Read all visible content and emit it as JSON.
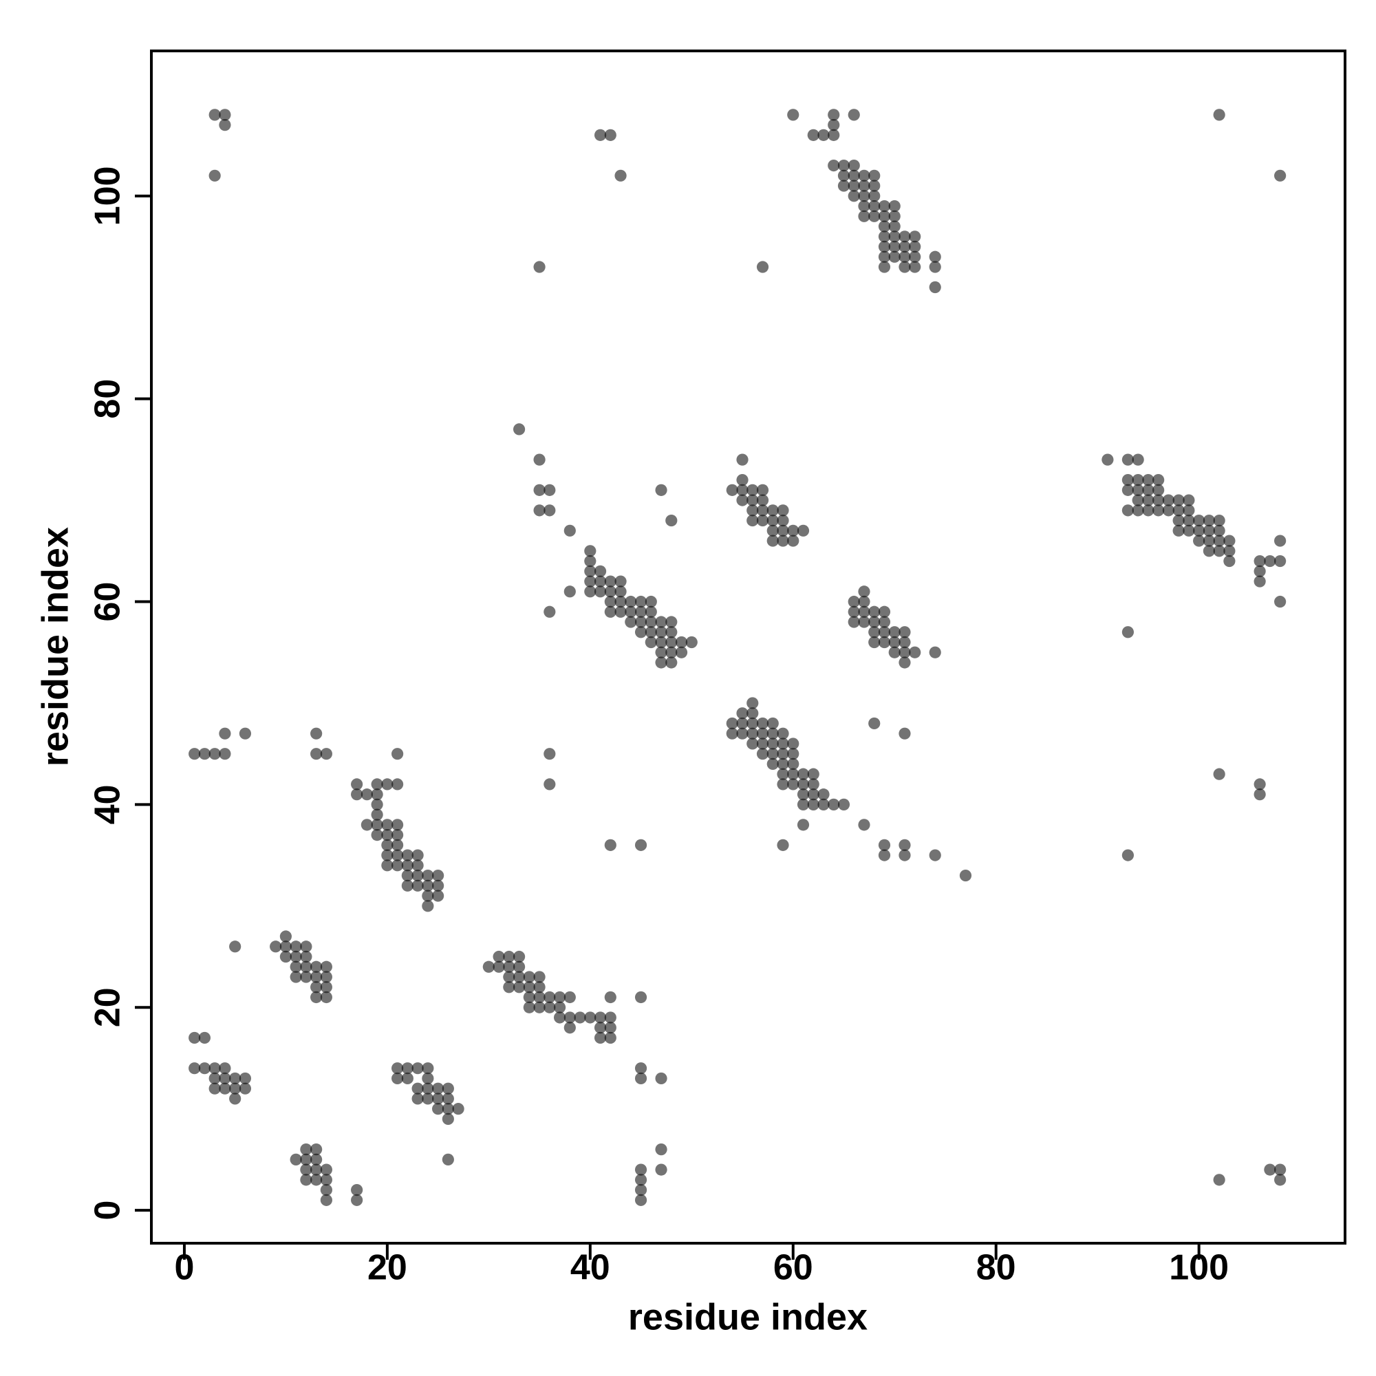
{
  "chart_data": {
    "type": "scatter",
    "xlabel": "residue index",
    "ylabel": "residue index",
    "xlim": [
      -3.25,
      114.4
    ],
    "ylim": [
      -3.25,
      114.3
    ],
    "xticks": [
      0,
      20,
      40,
      60,
      80,
      100
    ],
    "yticks": [
      0,
      20,
      40,
      60,
      80,
      100
    ],
    "color": "#000000",
    "alpha": 0.55,
    "series": [
      {
        "x": [
          3,
          4,
          4,
          3,
          41,
          42,
          43,
          35,
          57,
          60,
          64,
          66,
          62,
          63,
          64,
          64,
          102,
          108
        ],
        "y": [
          108,
          108,
          107,
          102,
          106,
          106,
          102,
          93,
          93,
          108,
          108,
          108,
          106,
          106,
          106,
          107,
          108,
          102
        ]
      },
      {
        "x": [
          64,
          65,
          65,
          65,
          66,
          66,
          66,
          66,
          67,
          67,
          67,
          67,
          67,
          68,
          68,
          68,
          68,
          68,
          69,
          69,
          69,
          69,
          69,
          69,
          69,
          70,
          70,
          70,
          70,
          70,
          70,
          71,
          71,
          71,
          71,
          72,
          72,
          72,
          72,
          74,
          74,
          74
        ],
        "y": [
          103,
          103,
          102,
          101,
          103,
          102,
          101,
          100,
          102,
          101,
          100,
          99,
          98,
          102,
          101,
          100,
          99,
          98,
          99,
          98,
          97,
          96,
          95,
          94,
          93,
          99,
          98,
          97,
          96,
          95,
          94,
          96,
          95,
          94,
          93,
          96,
          95,
          94,
          93,
          94,
          93,
          91
        ]
      },
      {
        "x": [
          33,
          35,
          35,
          36,
          35,
          36,
          38,
          38,
          36,
          47,
          48
        ],
        "y": [
          77,
          74,
          71,
          71,
          69,
          69,
          67,
          61,
          59,
          71,
          68
        ]
      },
      {
        "x": [
          40,
          40,
          40,
          40,
          40,
          41,
          41,
          41,
          42,
          42,
          42,
          43,
          43,
          43,
          43,
          42,
          44,
          44,
          44,
          45,
          45,
          45,
          45,
          46,
          46,
          46,
          46,
          46,
          47,
          47,
          47,
          47,
          47,
          48,
          48,
          48,
          48,
          48,
          49,
          49,
          50
        ],
        "y": [
          65,
          64,
          63,
          62,
          61,
          63,
          62,
          61,
          62,
          61,
          60,
          62,
          61,
          60,
          59,
          59,
          60,
          59,
          58,
          60,
          59,
          58,
          57,
          60,
          59,
          58,
          57,
          56,
          58,
          57,
          56,
          55,
          54,
          58,
          57,
          56,
          55,
          54,
          56,
          55,
          56
        ]
      },
      {
        "x": [
          55,
          54,
          55,
          55,
          55,
          56,
          56,
          56,
          56,
          57,
          57,
          57,
          57,
          58,
          58,
          58,
          58,
          59,
          59,
          59,
          59,
          60,
          60,
          61
        ],
        "y": [
          74,
          71,
          72,
          71,
          70,
          71,
          70,
          69,
          68,
          71,
          70,
          69,
          68,
          69,
          68,
          67,
          66,
          69,
          68,
          67,
          66,
          67,
          66,
          67
        ]
      },
      {
        "x": [
          66,
          66,
          66,
          67,
          67,
          67,
          67,
          68,
          68,
          68,
          68,
          69,
          69,
          69,
          69,
          70,
          70,
          70,
          71,
          71,
          71,
          71,
          72,
          74
        ],
        "y": [
          60,
          59,
          58,
          61,
          60,
          59,
          58,
          59,
          58,
          57,
          56,
          59,
          58,
          57,
          56,
          57,
          56,
          55,
          57,
          56,
          55,
          54,
          55,
          55
        ]
      },
      {
        "x": [
          54,
          54,
          55,
          55,
          55,
          56,
          56,
          56,
          56,
          56,
          57,
          57,
          57,
          57,
          58,
          58,
          58,
          58,
          58,
          59,
          59,
          59,
          59,
          59,
          59,
          60,
          60,
          60,
          60,
          60,
          61,
          61,
          61,
          61,
          62,
          62,
          62,
          62,
          63,
          63,
          64,
          65,
          61,
          59,
          67,
          68,
          71,
          69,
          69,
          71,
          71,
          74,
          77
        ],
        "y": [
          48,
          47,
          49,
          48,
          47,
          50,
          49,
          48,
          47,
          46,
          48,
          47,
          46,
          45,
          48,
          47,
          46,
          45,
          44,
          47,
          46,
          45,
          44,
          43,
          42,
          46,
          45,
          44,
          43,
          42,
          43,
          42,
          41,
          40,
          43,
          42,
          41,
          40,
          41,
          40,
          40,
          40,
          38,
          36,
          38,
          48,
          47,
          36,
          35,
          36,
          35,
          35,
          33
        ]
      },
      {
        "x": [
          91,
          93,
          94,
          93,
          93,
          93,
          94,
          94,
          94,
          94,
          95,
          95,
          95,
          95,
          96,
          96,
          96,
          96,
          97,
          97,
          98,
          98,
          98,
          98,
          99,
          99,
          99,
          99,
          100,
          100,
          100,
          101,
          101,
          101,
          101,
          102,
          102,
          102,
          102,
          103,
          103,
          103,
          106,
          106,
          106,
          107,
          108,
          108,
          108,
          93
        ],
        "y": [
          74,
          74,
          74,
          72,
          71,
          69,
          72,
          71,
          70,
          69,
          72,
          71,
          70,
          69,
          72,
          71,
          70,
          69,
          70,
          69,
          70,
          69,
          68,
          67,
          70,
          69,
          68,
          67,
          68,
          67,
          66,
          68,
          67,
          66,
          65,
          68,
          67,
          66,
          65,
          66,
          65,
          64,
          64,
          63,
          62,
          64,
          66,
          64,
          60,
          57
        ]
      },
      {
        "x": [
          1,
          2,
          3,
          4,
          4,
          6,
          13,
          13,
          14,
          21,
          36,
          36,
          42,
          45,
          102,
          106,
          106,
          93
        ],
        "y": [
          45,
          45,
          45,
          45,
          47,
          47,
          47,
          45,
          45,
          45,
          45,
          42,
          36,
          36,
          43,
          42,
          41,
          35
        ]
      },
      {
        "x": [
          17,
          17,
          18,
          18,
          19,
          19,
          19,
          19,
          19,
          19,
          20,
          20,
          20,
          20,
          20,
          20,
          21,
          21,
          21,
          21,
          21,
          21,
          22,
          22,
          22,
          22,
          23,
          23,
          23,
          23,
          24,
          24,
          24,
          24,
          25,
          25,
          25
        ],
        "y": [
          42,
          41,
          41,
          38,
          42,
          41,
          40,
          39,
          38,
          37,
          42,
          38,
          37,
          36,
          35,
          34,
          42,
          38,
          37,
          36,
          35,
          34,
          35,
          34,
          33,
          32,
          35,
          34,
          33,
          32,
          33,
          32,
          31,
          30,
          33,
          32,
          31
        ]
      },
      {
        "x": [
          5,
          9,
          10,
          10,
          10,
          11,
          11,
          11,
          11,
          12,
          12,
          12,
          12,
          13,
          13,
          13,
          13,
          14,
          14,
          14,
          14
        ],
        "y": [
          26,
          26,
          27,
          26,
          25,
          26,
          25,
          24,
          23,
          26,
          25,
          24,
          23,
          24,
          23,
          22,
          21,
          24,
          23,
          22,
          21
        ]
      },
      {
        "x": [
          30,
          31,
          31,
          32,
          32,
          32,
          32,
          33,
          33,
          33,
          33,
          34,
          34,
          34,
          34,
          35,
          35,
          35,
          35,
          36,
          36,
          37,
          37,
          37,
          38,
          38,
          38,
          39,
          40,
          41,
          41,
          41,
          42,
          42,
          42,
          42,
          45
        ],
        "y": [
          24,
          25,
          24,
          25,
          24,
          23,
          22,
          25,
          24,
          23,
          22,
          23,
          22,
          21,
          20,
          23,
          22,
          21,
          20,
          21,
          20,
          21,
          20,
          19,
          21,
          19,
          18,
          19,
          19,
          19,
          18,
          17,
          21,
          19,
          18,
          17,
          21
        ]
      },
      {
        "x": [
          1,
          2,
          1,
          2,
          3,
          3,
          3,
          4,
          4,
          4,
          5,
          5,
          5,
          6,
          6
        ],
        "y": [
          17,
          17,
          14,
          14,
          14,
          13,
          12,
          14,
          13,
          12,
          13,
          12,
          11,
          13,
          12
        ]
      },
      {
        "x": [
          21,
          21,
          22,
          22,
          23,
          23,
          23,
          24,
          24,
          24,
          24,
          25,
          25,
          25,
          26,
          26,
          26,
          26,
          27,
          26
        ],
        "y": [
          14,
          13,
          14,
          13,
          14,
          12,
          11,
          14,
          13,
          12,
          11,
          12,
          11,
          10,
          12,
          11,
          10,
          9,
          10,
          5
        ]
      },
      {
        "x": [
          45,
          45,
          47,
          47,
          47,
          45,
          45,
          45,
          45,
          11,
          12,
          12,
          12,
          12,
          13,
          13,
          13,
          13,
          14,
          14,
          14,
          14,
          17,
          17,
          102,
          107,
          108,
          108
        ],
        "y": [
          14,
          13,
          13,
          6,
          4,
          4,
          3,
          2,
          1,
          5,
          6,
          5,
          4,
          3,
          6,
          5,
          4,
          3,
          4,
          3,
          2,
          1,
          2,
          1,
          3,
          4,
          4,
          3
        ]
      }
    ]
  }
}
